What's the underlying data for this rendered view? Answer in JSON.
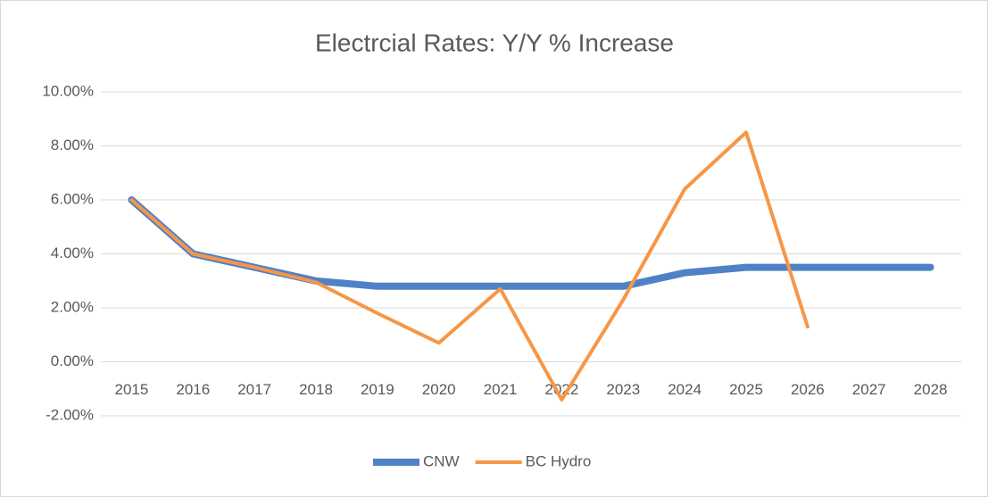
{
  "chart_data": {
    "type": "line",
    "title": "Electrcial Rates: Y/Y % Increase",
    "categories": [
      "2015",
      "2016",
      "2017",
      "2018",
      "2019",
      "2020",
      "2021",
      "2022",
      "2023",
      "2024",
      "2025",
      "2026",
      "2027",
      "2028"
    ],
    "series": [
      {
        "name": "CNW",
        "color": "#4f81c7",
        "values": [
          6.0,
          4.0,
          3.5,
          3.0,
          2.8,
          2.8,
          2.8,
          2.8,
          2.8,
          3.3,
          3.5,
          3.5,
          3.5,
          3.5
        ]
      },
      {
        "name": "BC Hydro",
        "color": "#f79646",
        "values": [
          6.0,
          4.0,
          3.5,
          2.95,
          1.8,
          0.7,
          2.7,
          -1.4,
          2.3,
          6.4,
          8.5,
          1.3,
          null,
          null
        ]
      }
    ],
    "ylim": [
      -2,
      10
    ],
    "yticks": [
      {
        "value": -2,
        "label": "-2.00%"
      },
      {
        "value": 0,
        "label": "0.00%"
      },
      {
        "value": 2,
        "label": "2.00%"
      },
      {
        "value": 4,
        "label": "4.00%"
      },
      {
        "value": 6,
        "label": "6.00%"
      },
      {
        "value": 8,
        "label": "8.00%"
      },
      {
        "value": 10,
        "label": "10.00%"
      }
    ],
    "grid": true,
    "legend": "bottom"
  }
}
